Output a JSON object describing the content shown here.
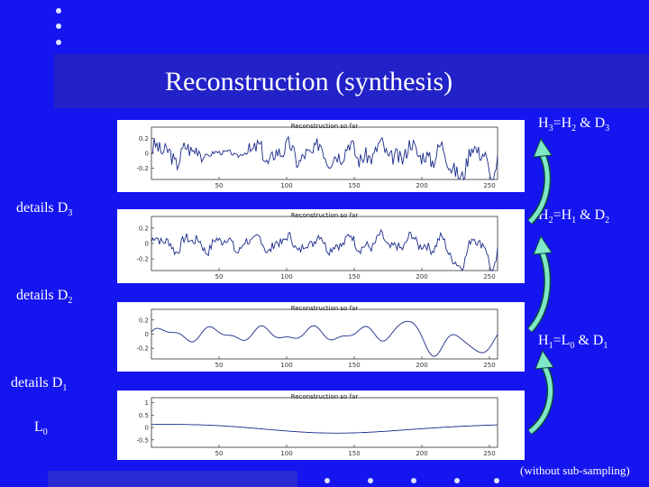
{
  "slide": {
    "title": "Reconstruction (synthesis)",
    "note": "(without sub-sampling)"
  },
  "formulas": [
    {
      "lhs": "H",
      "lhs_sub": "3",
      "eq": "=H",
      "rhs_sub": "2",
      "amp": " & D",
      "d_sub": "3"
    },
    {
      "lhs": "H",
      "lhs_sub": "2",
      "eq": "=H",
      "rhs_sub": "1",
      "amp": " & D",
      "d_sub": "2"
    },
    {
      "lhs": "H",
      "lhs_sub": "1",
      "eq": "=L",
      "rhs_sub": "0",
      "amp": " & D",
      "d_sub": "1"
    }
  ],
  "side_labels": [
    {
      "text": "details D",
      "sub": "3"
    },
    {
      "text": "details D",
      "sub": "2"
    },
    {
      "text": "details D",
      "sub": "1"
    },
    {
      "text": "L",
      "sub": "0"
    }
  ],
  "chart_data": [
    {
      "type": "line",
      "title": "Reconstruction so far",
      "x_ticks": [
        "50",
        "100",
        "150",
        "200",
        "250"
      ],
      "y_ticks": [
        "0.2",
        "0",
        "-0.2"
      ],
      "signal": "H3",
      "ylim": [
        -0.35,
        0.35
      ],
      "xlim": [
        0,
        256
      ]
    },
    {
      "type": "line",
      "title": "Reconstruction so far",
      "x_ticks": [
        "50",
        "100",
        "150",
        "200",
        "250"
      ],
      "y_ticks": [
        "0.2",
        "0",
        "-0.2"
      ],
      "signal": "H2",
      "ylim": [
        -0.35,
        0.35
      ],
      "xlim": [
        0,
        256
      ]
    },
    {
      "type": "line",
      "title": "Reconstruction so far",
      "x_ticks": [
        "50",
        "100",
        "150",
        "200",
        "250"
      ],
      "y_ticks": [
        "0.2",
        "0",
        "-0.2"
      ],
      "signal": "H1",
      "ylim": [
        -0.35,
        0.35
      ],
      "xlim": [
        0,
        256
      ]
    },
    {
      "type": "line",
      "title": "Reconstruction so far",
      "x_ticks": [
        "50",
        "100",
        "150",
        "200",
        "250"
      ],
      "y_ticks": [
        "1",
        "0.5",
        "0",
        "-0.5"
      ],
      "signal": "L0",
      "ylim": [
        -0.8,
        1.2
      ],
      "xlim": [
        0,
        256
      ]
    }
  ]
}
